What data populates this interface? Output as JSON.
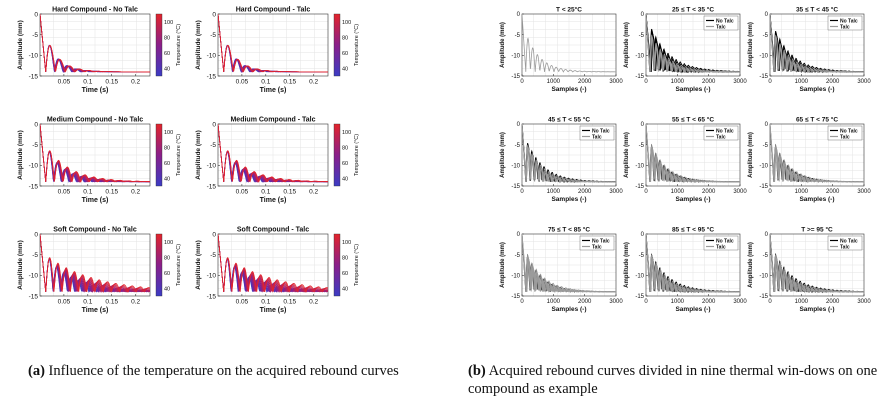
{
  "caption_a": {
    "label": "(a)",
    "text": "Influence of the temperature on the acquired rebound curves"
  },
  "caption_b": {
    "label": "(b)",
    "text": "Acquired rebound curves divided in nine thermal win-dows on one compound as example"
  },
  "colors": {
    "cold": "#3b3bc4",
    "mid": "#8a1f8a",
    "hot": "#e3242b",
    "talc_gray": "#9b9b9b",
    "no_talc_black": "#000000"
  },
  "chart_data": [
    {
      "group": "a",
      "type": "line",
      "title": "Hard Compound - No Talc",
      "xlabel": "Time (s)",
      "ylabel": "Amplitude (mm)",
      "xlim": [
        0,
        0.23
      ],
      "ylim": [
        -15,
        0
      ],
      "xticks": [
        "0.05",
        "0.1",
        "0.15",
        "0.2"
      ],
      "yticks": [
        "0",
        "-5",
        "-10",
        "-15"
      ],
      "colorbar": {
        "label": "Temperature (°C)",
        "ticks": [
          "40",
          "60",
          "80",
          "100"
        ],
        "range": [
          30,
          110
        ]
      },
      "series": [
        {
          "temperature": 30,
          "amplitude": 9.0,
          "decay": 40,
          "period": 0.018
        },
        {
          "temperature": 100,
          "amplitude": 9.0,
          "decay": 36,
          "period": 0.018
        }
      ],
      "grid": true
    },
    {
      "group": "a",
      "type": "line",
      "title": "Hard Compound - Talc",
      "xlabel": "Time (s)",
      "ylabel": "Amplitude (mm)",
      "xlim": [
        0,
        0.23
      ],
      "ylim": [
        -15,
        0
      ],
      "xticks": [
        "0.05",
        "0.1",
        "0.15",
        "0.2"
      ],
      "yticks": [
        "0",
        "-5",
        "-10",
        "-15"
      ],
      "colorbar": {
        "label": "Temperature (°C)",
        "ticks": [
          "40",
          "60",
          "80",
          "100"
        ],
        "range": [
          30,
          110
        ]
      },
      "series": [
        {
          "temperature": 30,
          "amplitude": 9.0,
          "decay": 40,
          "period": 0.018
        },
        {
          "temperature": 100,
          "amplitude": 9.0,
          "decay": 36,
          "period": 0.018
        }
      ],
      "grid": true
    },
    {
      "group": "a",
      "type": "line",
      "title": "Medium Compound - No Talc",
      "xlabel": "Time (s)",
      "ylabel": "Amplitude (mm)",
      "xlim": [
        0,
        0.23
      ],
      "ylim": [
        -15,
        0
      ],
      "xticks": [
        "0.05",
        "0.1",
        "0.15",
        "0.2"
      ],
      "yticks": [
        "0",
        "-5",
        "-10",
        "-15"
      ],
      "colorbar": {
        "label": "Temperature (°C)",
        "ticks": [
          "40",
          "60",
          "80",
          "100"
        ],
        "range": [
          30,
          110
        ]
      },
      "series": [
        {
          "temperature": 30,
          "amplitude": 9.0,
          "decay": 28,
          "period": 0.016
        },
        {
          "temperature": 100,
          "amplitude": 9.0,
          "decay": 20,
          "period": 0.016
        }
      ],
      "grid": true
    },
    {
      "group": "a",
      "type": "line",
      "title": "Medium Compound - Talc",
      "xlabel": "Time (s)",
      "ylabel": "Amplitude (mm)",
      "xlim": [
        0,
        0.23
      ],
      "ylim": [
        -15,
        0
      ],
      "xticks": [
        "0.05",
        "0.1",
        "0.15",
        "0.2"
      ],
      "yticks": [
        "0",
        "-5",
        "-10",
        "-15"
      ],
      "colorbar": {
        "label": "Temperature (°C)",
        "ticks": [
          "40",
          "60",
          "80",
          "100"
        ],
        "range": [
          30,
          110
        ]
      },
      "series": [
        {
          "temperature": 30,
          "amplitude": 9.0,
          "decay": 28,
          "period": 0.016
        },
        {
          "temperature": 100,
          "amplitude": 9.0,
          "decay": 20,
          "period": 0.016
        }
      ],
      "grid": true
    },
    {
      "group": "a",
      "type": "line",
      "title": "Soft Compound - No Talc",
      "xlabel": "Time (s)",
      "ylabel": "Amplitude (mm)",
      "xlim": [
        0,
        0.23
      ],
      "ylim": [
        -15,
        0
      ],
      "xticks": [
        "0.05",
        "0.1",
        "0.15",
        "0.2"
      ],
      "yticks": [
        "0",
        "-5",
        "-10",
        "-15"
      ],
      "colorbar": {
        "label": "Temperature (°C)",
        "ticks": [
          "40",
          "60",
          "80",
          "100"
        ],
        "range": [
          30,
          110
        ]
      },
      "series": [
        {
          "temperature": 30,
          "amplitude": 9.0,
          "decay": 18,
          "period": 0.015
        },
        {
          "temperature": 100,
          "amplitude": 9.0,
          "decay": 10,
          "period": 0.015
        }
      ],
      "grid": true
    },
    {
      "group": "a",
      "type": "line",
      "title": "Soft Compound - Talc",
      "xlabel": "Time (s)",
      "ylabel": "Amplitude (mm)",
      "xlim": [
        0,
        0.23
      ],
      "ylim": [
        -15,
        0
      ],
      "xticks": [
        "0.05",
        "0.1",
        "0.15",
        "0.2"
      ],
      "yticks": [
        "0",
        "-5",
        "-10",
        "-15"
      ],
      "colorbar": {
        "label": "Temperature (°C)",
        "ticks": [
          "40",
          "60",
          "80",
          "100"
        ],
        "range": [
          30,
          110
        ]
      },
      "series": [
        {
          "temperature": 30,
          "amplitude": 9.0,
          "decay": 18,
          "period": 0.015
        },
        {
          "temperature": 100,
          "amplitude": 9.0,
          "decay": 10,
          "period": 0.015
        }
      ],
      "grid": true
    },
    {
      "group": "b",
      "type": "line",
      "title": "T < 25°C",
      "xlabel": "Samples (-)",
      "ylabel": "Amplitude (mm)",
      "xlim": [
        0,
        3000
      ],
      "ylim": [
        -15,
        0
      ],
      "xticks": [
        "0",
        "1000",
        "2000",
        "3000"
      ],
      "yticks": [
        "0",
        "-5",
        "-10",
        "-15"
      ],
      "legend": {
        "position": "top-right",
        "entries": []
      },
      "series": [
        {
          "name": "Talc",
          "color": "#9b9b9b",
          "amplitude": 9.5,
          "decay": 0.0022,
          "period": 150,
          "count": 1
        }
      ],
      "grid": true
    },
    {
      "group": "b",
      "type": "line",
      "title": "25 ≤ T < 35 °C",
      "xlabel": "Samples (-)",
      "ylabel": "Amplitude (mm)",
      "xlim": [
        0,
        3000
      ],
      "ylim": [
        -15,
        0
      ],
      "xticks": [
        "0",
        "1000",
        "2000",
        "3000"
      ],
      "yticks": [
        "0",
        "-5",
        "-10",
        "-15"
      ],
      "legend": {
        "position": "top-right",
        "entries": [
          "No Talc",
          "Talc"
        ]
      },
      "series": [
        {
          "name": "No Talc",
          "color": "#000000",
          "amplitude": 11.5,
          "decay": 0.0016,
          "period": 130,
          "count": 6
        },
        {
          "name": "Talc",
          "color": "#9b9b9b",
          "amplitude": 10.0,
          "decay": 0.0018,
          "period": 135,
          "count": 3
        }
      ],
      "grid": true
    },
    {
      "group": "b",
      "type": "line",
      "title": "35 ≤ T < 45 °C",
      "xlabel": "Samples (-)",
      "ylabel": "Amplitude (mm)",
      "xlim": [
        0,
        3000
      ],
      "ylim": [
        -15,
        0
      ],
      "xticks": [
        "0",
        "1000",
        "2000",
        "3000"
      ],
      "yticks": [
        "0",
        "-5",
        "-10",
        "-15"
      ],
      "legend": {
        "position": "top-right",
        "entries": [
          "No Talc",
          "Talc"
        ]
      },
      "series": [
        {
          "name": "No Talc",
          "color": "#000000",
          "amplitude": 11.0,
          "decay": 0.0017,
          "period": 130,
          "count": 5
        },
        {
          "name": "Talc",
          "color": "#9b9b9b",
          "amplitude": 10.0,
          "decay": 0.0019,
          "period": 135,
          "count": 3
        }
      ],
      "grid": true
    },
    {
      "group": "b",
      "type": "line",
      "title": "45 ≤ T < 55 °C",
      "xlabel": "Samples (-)",
      "ylabel": "Amplitude (mm)",
      "xlim": [
        0,
        3000
      ],
      "ylim": [
        -15,
        0
      ],
      "xticks": [
        "0",
        "1000",
        "2000",
        "3000"
      ],
      "yticks": [
        "0",
        "-5",
        "-10",
        "-15"
      ],
      "legend": {
        "position": "top-right",
        "entries": [
          "No Talc",
          "Talc"
        ]
      },
      "series": [
        {
          "name": "No Talc",
          "color": "#000000",
          "amplitude": 10.5,
          "decay": 0.0018,
          "period": 130,
          "count": 3
        },
        {
          "name": "Talc",
          "color": "#9b9b9b",
          "amplitude": 10.0,
          "decay": 0.0019,
          "period": 135,
          "count": 3
        }
      ],
      "grid": true
    },
    {
      "group": "b",
      "type": "line",
      "title": "55 ≤ T < 65 °C",
      "xlabel": "Samples (-)",
      "ylabel": "Amplitude (mm)",
      "xlim": [
        0,
        3000
      ],
      "ylim": [
        -15,
        0
      ],
      "xticks": [
        "0",
        "1000",
        "2000",
        "3000"
      ],
      "yticks": [
        "0",
        "-5",
        "-10",
        "-15"
      ],
      "legend": {
        "position": "top-right",
        "entries": [
          "No Talc",
          "Talc"
        ]
      },
      "series": [
        {
          "name": "No Talc",
          "color": "#000000",
          "amplitude": 10.0,
          "decay": 0.002,
          "period": 130,
          "count": 2
        },
        {
          "name": "Talc",
          "color": "#9b9b9b",
          "amplitude": 10.0,
          "decay": 0.0019,
          "period": 135,
          "count": 4
        }
      ],
      "grid": true
    },
    {
      "group": "b",
      "type": "line",
      "title": "65 ≤ T < 75 °C",
      "xlabel": "Samples (-)",
      "ylabel": "Amplitude (mm)",
      "xlim": [
        0,
        3000
      ],
      "ylim": [
        -15,
        0
      ],
      "xticks": [
        "0",
        "1000",
        "2000",
        "3000"
      ],
      "yticks": [
        "0",
        "-5",
        "-10",
        "-15"
      ],
      "legend": {
        "position": "top-right",
        "entries": [
          "No Talc",
          "Talc"
        ]
      },
      "series": [
        {
          "name": "No Talc",
          "color": "#000000",
          "amplitude": 10.0,
          "decay": 0.002,
          "period": 130,
          "count": 1
        },
        {
          "name": "Talc",
          "color": "#9b9b9b",
          "amplitude": 10.0,
          "decay": 0.0019,
          "period": 135,
          "count": 4
        }
      ],
      "grid": true
    },
    {
      "group": "b",
      "type": "line",
      "title": "75 ≤ T < 85 °C",
      "xlabel": "Samples (-)",
      "ylabel": "Amplitude (mm)",
      "xlim": [
        0,
        3000
      ],
      "ylim": [
        -15,
        0
      ],
      "xticks": [
        "0",
        "1000",
        "2000",
        "3000"
      ],
      "yticks": [
        "0",
        "-5",
        "-10",
        "-15"
      ],
      "legend": {
        "position": "top-right",
        "entries": [
          "No Talc",
          "Talc"
        ]
      },
      "series": [
        {
          "name": "No Talc",
          "color": "#000000",
          "amplitude": 10.0,
          "decay": 0.002,
          "period": 130,
          "count": 1
        },
        {
          "name": "Talc",
          "color": "#9b9b9b",
          "amplitude": 10.0,
          "decay": 0.0018,
          "period": 135,
          "count": 5
        }
      ],
      "grid": true
    },
    {
      "group": "b",
      "type": "line",
      "title": "85 ≤ T < 95 °C",
      "xlabel": "Samples (-)",
      "ylabel": "Amplitude (mm)",
      "xlim": [
        0,
        3000
      ],
      "ylim": [
        -15,
        0
      ],
      "xticks": [
        "0",
        "1000",
        "2000",
        "3000"
      ],
      "yticks": [
        "0",
        "-5",
        "-10",
        "-15"
      ],
      "legend": {
        "position": "top-right",
        "entries": [
          "No Talc",
          "Talc"
        ]
      },
      "series": [
        {
          "name": "No Talc",
          "color": "#000000",
          "amplitude": 10.0,
          "decay": 0.0017,
          "period": 130,
          "count": 4
        },
        {
          "name": "Talc",
          "color": "#9b9b9b",
          "amplitude": 10.0,
          "decay": 0.0018,
          "period": 135,
          "count": 4
        }
      ],
      "grid": true
    },
    {
      "group": "b",
      "type": "line",
      "title": "T >= 95 °C",
      "xlabel": "Samples (-)",
      "ylabel": "Amplitude (mm)",
      "xlim": [
        0,
        3000
      ],
      "ylim": [
        -15,
        0
      ],
      "xticks": [
        "0",
        "1000",
        "2000",
        "3000"
      ],
      "yticks": [
        "0",
        "-5",
        "-10",
        "-15"
      ],
      "legend": {
        "position": "top-right",
        "entries": [
          "No Talc",
          "Talc"
        ]
      },
      "series": [
        {
          "name": "No Talc",
          "color": "#000000",
          "amplitude": 10.0,
          "decay": 0.0016,
          "period": 130,
          "count": 4
        },
        {
          "name": "Talc",
          "color": "#9b9b9b",
          "amplitude": 10.0,
          "decay": 0.0017,
          "period": 135,
          "count": 4
        }
      ],
      "grid": true
    }
  ]
}
